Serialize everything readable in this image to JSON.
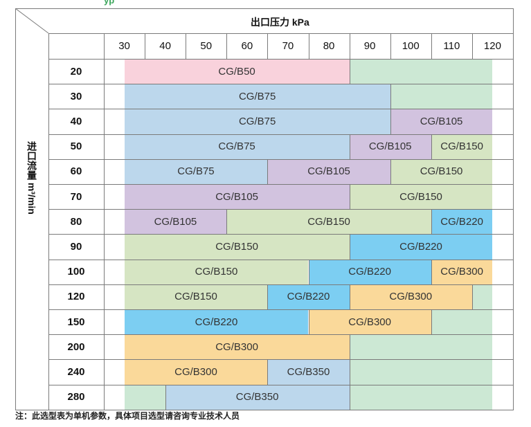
{
  "top_text_partial": "yp",
  "header_title": "出口压力 kPa",
  "y_axis_title": "进口流量 m³/min",
  "footnote": "注：此选型表为单机参数，具体项目选型请咨询专业技术人员",
  "colors": {
    "CG/B50": "#f9d2dc",
    "CG/B75": "#bcd7ec",
    "CG/B105": "#d2c3df",
    "CG/B150": "#d6e5c3",
    "CG/B220": "#7ccef2",
    "CG/B300": "#fad99a",
    "CG/B350": "#bcd7ec",
    "blank": "#cce8d4"
  },
  "chart_data": {
    "type": "table",
    "columns": [
      "30",
      "40",
      "50",
      "60",
      "70",
      "80",
      "90",
      "100",
      "110",
      "120"
    ],
    "rows": [
      {
        "label": "20",
        "segments": [
          {
            "model": "CG/B50",
            "from": 30,
            "to": 85
          },
          {
            "model": "",
            "from": 85,
            "to": 120
          }
        ]
      },
      {
        "label": "30",
        "segments": [
          {
            "model": "CG/B75",
            "from": 30,
            "to": 95
          },
          {
            "model": "",
            "from": 95,
            "to": 120
          }
        ]
      },
      {
        "label": "40",
        "segments": [
          {
            "model": "CG/B75",
            "from": 30,
            "to": 95
          },
          {
            "model": "CG/B105",
            "from": 95,
            "to": 120
          }
        ]
      },
      {
        "label": "50",
        "segments": [
          {
            "model": "CG/B75",
            "from": 30,
            "to": 85
          },
          {
            "model": "CG/B105",
            "from": 85,
            "to": 105
          },
          {
            "model": "CG/B150",
            "from": 105,
            "to": 120
          }
        ]
      },
      {
        "label": "60",
        "segments": [
          {
            "model": "CG/B75",
            "from": 30,
            "to": 65
          },
          {
            "model": "CG/B105",
            "from": 65,
            "to": 95
          },
          {
            "model": "CG/B150",
            "from": 95,
            "to": 120
          }
        ]
      },
      {
        "label": "70",
        "segments": [
          {
            "model": "CG/B105",
            "from": 30,
            "to": 85
          },
          {
            "model": "CG/B150",
            "from": 85,
            "to": 120
          }
        ]
      },
      {
        "label": "80",
        "segments": [
          {
            "model": "CG/B105",
            "from": 30,
            "to": 55
          },
          {
            "model": "CG/B150",
            "from": 55,
            "to": 105
          },
          {
            "model": "CG/B220",
            "from": 105,
            "to": 120
          }
        ]
      },
      {
        "label": "90",
        "segments": [
          {
            "model": "CG/B150",
            "from": 30,
            "to": 85
          },
          {
            "model": "CG/B220",
            "from": 85,
            "to": 120
          }
        ]
      },
      {
        "label": "100",
        "segments": [
          {
            "model": "CG/B150",
            "from": 30,
            "to": 75
          },
          {
            "model": "CG/B220",
            "from": 75,
            "to": 105
          },
          {
            "model": "CG/B300",
            "from": 105,
            "to": 120
          }
        ]
      },
      {
        "label": "120",
        "segments": [
          {
            "model": "CG/B150",
            "from": 30,
            "to": 65
          },
          {
            "model": "CG/B220",
            "from": 65,
            "to": 85
          },
          {
            "model": "CG/B300",
            "from": 85,
            "to": 115
          },
          {
            "model": "",
            "from": 115,
            "to": 120
          }
        ]
      },
      {
        "label": "150",
        "segments": [
          {
            "model": "CG/B220",
            "from": 30,
            "to": 75
          },
          {
            "model": "CG/B300",
            "from": 75,
            "to": 105
          },
          {
            "model": "",
            "from": 105,
            "to": 120
          }
        ]
      },
      {
        "label": "200",
        "segments": [
          {
            "model": "CG/B300",
            "from": 30,
            "to": 85
          },
          {
            "model": "",
            "from": 85,
            "to": 120
          }
        ]
      },
      {
        "label": "240",
        "segments": [
          {
            "model": "CG/B300",
            "from": 30,
            "to": 65
          },
          {
            "model": "CG/B350",
            "from": 65,
            "to": 85
          },
          {
            "model": "",
            "from": 85,
            "to": 120
          }
        ]
      },
      {
        "label": "280",
        "segments": [
          {
            "model": "",
            "from": 30,
            "to": 40
          },
          {
            "model": "CG/B350",
            "from": 40,
            "to": 85
          },
          {
            "model": "",
            "from": 85,
            "to": 120
          }
        ]
      }
    ]
  }
}
